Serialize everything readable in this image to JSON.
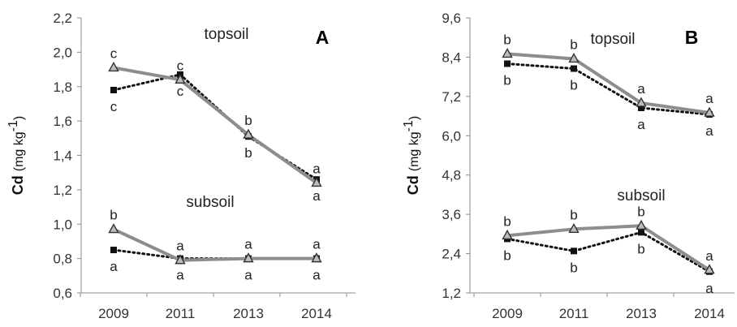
{
  "chart_data": [
    {
      "type": "line",
      "panel_label": "A",
      "ylabel": "Cd",
      "ylabel_unit": "(mg kg",
      "ylabel_unit_exp": "-1",
      "ylabel_unit_close": ")",
      "categories": [
        "2009",
        "2011",
        "2013",
        "2014"
      ],
      "ylim": [
        0.6,
        2.2
      ],
      "yticks": [
        "0,6",
        "0,8",
        "1,0",
        "1,2",
        "1,4",
        "1,6",
        "1,8",
        "2,0",
        "2,2"
      ],
      "grid": false,
      "legend": "none",
      "region_labels": [
        "topsoil",
        "subsoil"
      ],
      "series": [
        {
          "group": "topsoil",
          "style": "solid-gray-triangle",
          "values": [
            1.91,
            1.84,
            1.52,
            1.24
          ],
          "labels": [
            "c",
            "c",
            "b",
            "a"
          ],
          "label_pos": "above"
        },
        {
          "group": "topsoil",
          "style": "dotted-black-square",
          "values": [
            1.78,
            1.87,
            1.51,
            1.26
          ],
          "labels": [
            "c",
            "c",
            "b",
            "a"
          ],
          "label_pos": "below"
        },
        {
          "group": "subsoil",
          "style": "solid-gray-triangle",
          "values": [
            0.97,
            0.79,
            0.8,
            0.8
          ],
          "labels": [
            "b",
            "a",
            "a",
            "a"
          ],
          "label_pos": "above"
        },
        {
          "group": "subsoil",
          "style": "dotted-black-square",
          "values": [
            0.85,
            0.8,
            0.8,
            0.8
          ],
          "labels": [
            "a",
            "a",
            "a",
            "a"
          ],
          "label_pos": "below"
        }
      ]
    },
    {
      "type": "line",
      "panel_label": "B",
      "ylabel": "Cd",
      "ylabel_unit": "(mg kg",
      "ylabel_unit_exp": "-1",
      "ylabel_unit_close": ")",
      "categories": [
        "2009",
        "2011",
        "2013",
        "2014"
      ],
      "ylim": [
        1.2,
        9.6
      ],
      "yticks": [
        "1,2",
        "2,4",
        "3,6",
        "4,8",
        "6,0",
        "7,2",
        "8,4",
        "9,6"
      ],
      "grid": false,
      "legend": "none",
      "region_labels": [
        "topsoil",
        "subsoil"
      ],
      "series": [
        {
          "group": "topsoil",
          "style": "solid-gray-triangle",
          "values": [
            8.5,
            8.35,
            7.0,
            6.7
          ],
          "labels": [
            "b",
            "b",
            "a",
            "a"
          ],
          "label_pos": "above"
        },
        {
          "group": "topsoil",
          "style": "dotted-black-square",
          "values": [
            8.2,
            8.05,
            6.85,
            6.65
          ],
          "labels": [
            "b",
            "b",
            "a",
            "a"
          ],
          "label_pos": "below"
        },
        {
          "group": "subsoil",
          "style": "solid-gray-triangle",
          "values": [
            2.95,
            3.15,
            3.25,
            1.9
          ],
          "labels": [
            "b",
            "b",
            "b",
            "a"
          ],
          "label_pos": "above"
        },
        {
          "group": "subsoil",
          "style": "dotted-black-square",
          "values": [
            2.85,
            2.48,
            3.05,
            1.85
          ],
          "labels": [
            "b",
            "b",
            "b",
            "a"
          ],
          "label_pos": "below"
        }
      ]
    }
  ]
}
